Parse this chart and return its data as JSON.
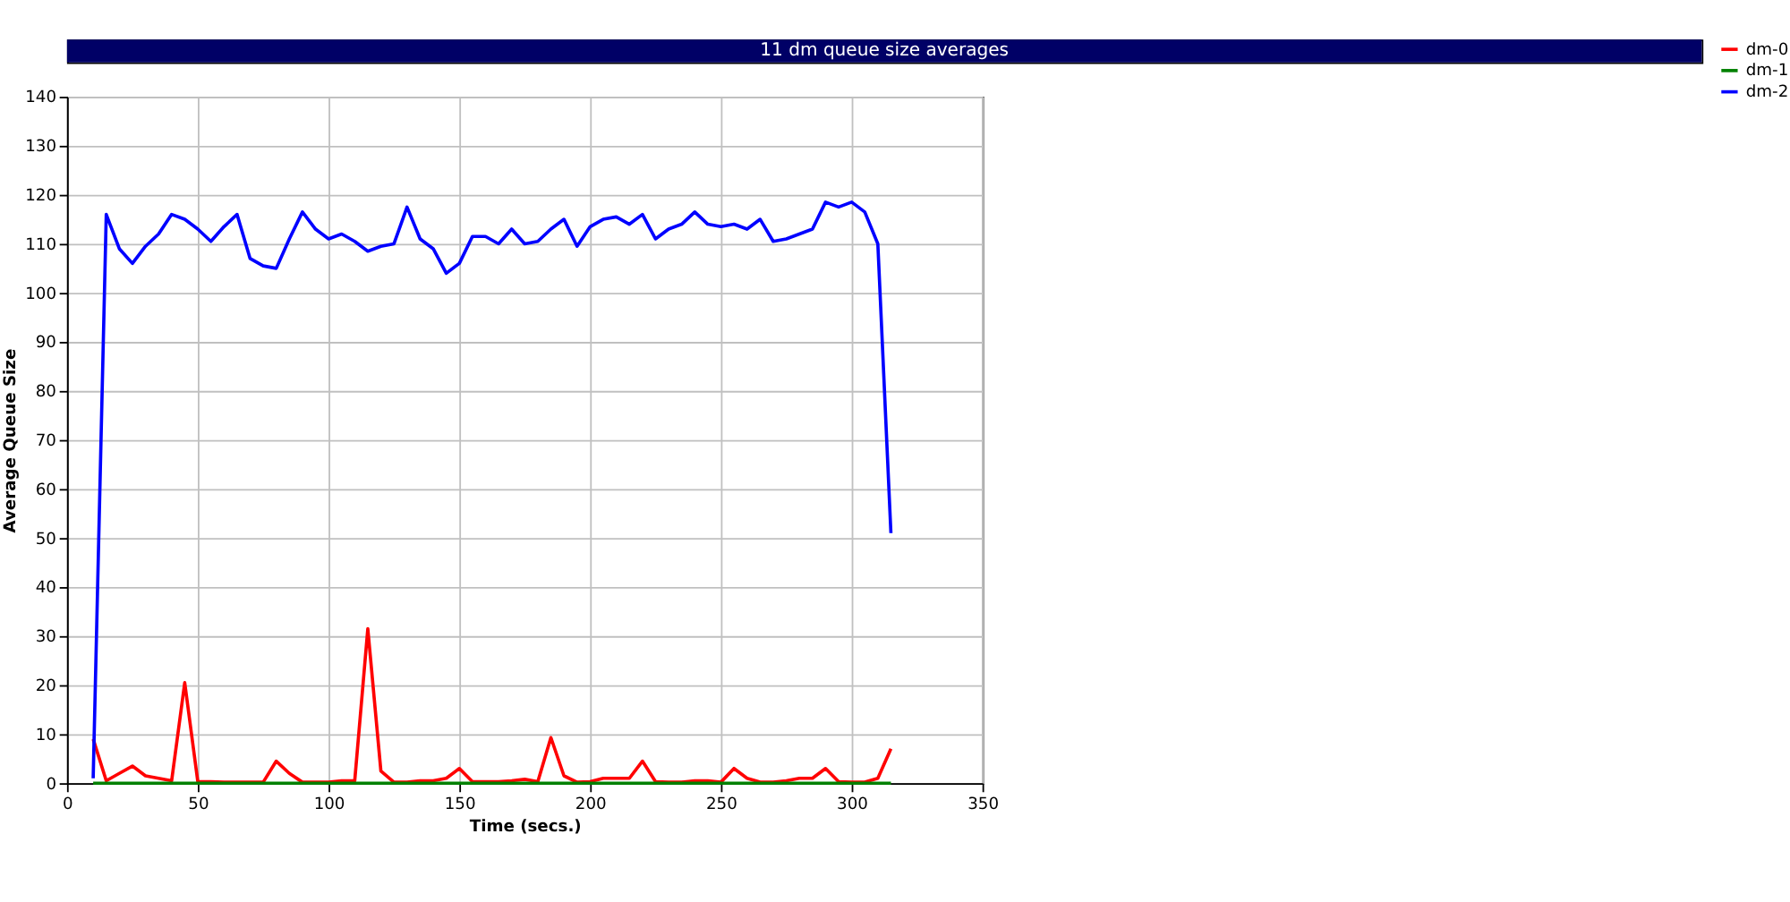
{
  "chart_data": {
    "type": "line",
    "title": "11 dm queue size averages",
    "xlabel": "Time (secs.)",
    "ylabel": "Average Queue Size",
    "x": [
      10,
      15,
      20,
      25,
      30,
      35,
      40,
      45,
      50,
      55,
      60,
      65,
      70,
      75,
      80,
      85,
      90,
      95,
      100,
      105,
      110,
      115,
      120,
      125,
      130,
      135,
      140,
      145,
      150,
      155,
      160,
      165,
      170,
      175,
      180,
      185,
      190,
      195,
      200,
      205,
      210,
      215,
      220,
      225,
      230,
      235,
      240,
      245,
      250,
      255,
      260,
      265,
      270,
      275,
      280,
      285,
      290,
      295,
      300,
      305,
      310,
      315
    ],
    "series": [
      {
        "name": "dm-0",
        "color": "#ff0000",
        "values": [
          9,
          0.5,
          2,
          3.5,
          1.5,
          1,
          0.5,
          20.5,
          0.3,
          0.3,
          0.2,
          0.2,
          0.2,
          0.2,
          4.5,
          2,
          0.2,
          0.2,
          0.2,
          0.5,
          0.5,
          31.5,
          2.5,
          0.2,
          0.2,
          0.5,
          0.5,
          1,
          3,
          0.3,
          0.3,
          0.3,
          0.5,
          0.8,
          0.3,
          9.3,
          1.5,
          0.2,
          0.3,
          1,
          1,
          1,
          4.5,
          0.3,
          0.2,
          0.2,
          0.5,
          0.5,
          0.2,
          3,
          1,
          0.2,
          0.2,
          0.5,
          1,
          1,
          3,
          0.3,
          0.2,
          0.2,
          1,
          7
        ]
      },
      {
        "name": "dm-1",
        "color": "#008000",
        "values": [
          0,
          0,
          0,
          0,
          0,
          0,
          0,
          0,
          0,
          0,
          0,
          0,
          0,
          0,
          0,
          0,
          0,
          0,
          0,
          0,
          0,
          0,
          0,
          0,
          0,
          0,
          0,
          0,
          0,
          0,
          0,
          0,
          0,
          0,
          0,
          0,
          0,
          0,
          0,
          0,
          0,
          0,
          0,
          0,
          0,
          0,
          0,
          0,
          0,
          0,
          0,
          0,
          0,
          0,
          0,
          0,
          0,
          0,
          0,
          0,
          0,
          0
        ]
      },
      {
        "name": "dm-2",
        "color": "#0000ff",
        "values": [
          1,
          116,
          109,
          106,
          109.5,
          112,
          116,
          115,
          113,
          110.5,
          113.5,
          116,
          107,
          105.5,
          105,
          111,
          116.5,
          113,
          111,
          112,
          110.5,
          108.5,
          109.5,
          110,
          117.5,
          111,
          109,
          104,
          106,
          111.5,
          111.5,
          110,
          113,
          110,
          110.5,
          113,
          115,
          109.5,
          113.5,
          115,
          115.5,
          114,
          116,
          111,
          113,
          114,
          116.5,
          114,
          113.5,
          114,
          113,
          115,
          110.5,
          111,
          112,
          113,
          118.5,
          117.5,
          118.5,
          116.5,
          110,
          51
        ]
      }
    ],
    "xlim": [
      0,
      350
    ],
    "xticks": [
      0,
      50,
      100,
      150,
      200,
      250,
      300,
      350
    ],
    "ylim": [
      0,
      140
    ],
    "yticks": [
      0,
      10,
      20,
      30,
      40,
      50,
      60,
      70,
      80,
      90,
      100,
      110,
      120,
      130,
      140
    ],
    "grid": true,
    "legend": "top right",
    "marker": "none",
    "line_style": "solid"
  }
}
